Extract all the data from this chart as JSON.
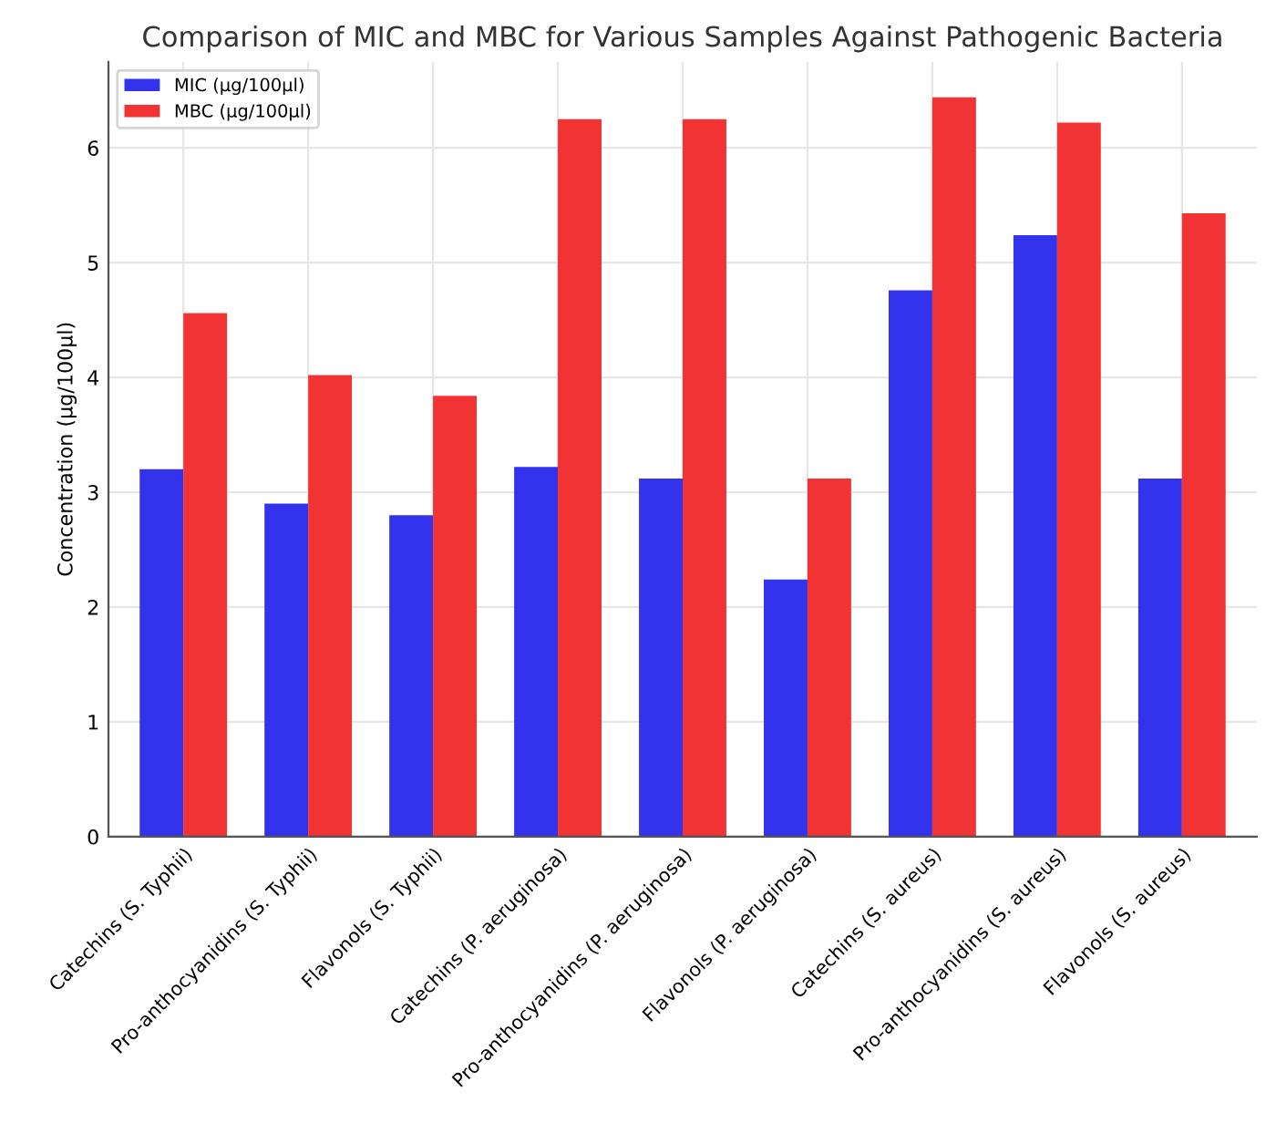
{
  "chart_data": {
    "type": "bar",
    "title": "Comparison of MIC and MBC for Various Samples Against Pathogenic Bacteria",
    "ylabel": "Concentration (µg/100µl)",
    "categories": [
      "Catechins (S. Typhii)",
      "Pro-anthocyanidins (S. Typhii)",
      "Flavonols (S. Typhii)",
      "Catechins (P. aeruginosa)",
      "Pro-anthocyanidins (P. aeruginosa)",
      "Flavonols (P. aeruginosa)",
      "Catechins (S. aureus)",
      "Pro-anthocyanidins (S. aureus)",
      "Flavonols (S. aureus)"
    ],
    "series": [
      {
        "name": "MIC (µg/100µl)",
        "color": "#3333ee",
        "values": [
          3.2,
          2.9,
          2.8,
          3.22,
          3.12,
          2.24,
          4.76,
          5.24,
          3.12
        ]
      },
      {
        "name": "MBC (µg/100µl)",
        "color": "#f23333",
        "values": [
          4.56,
          4.02,
          3.84,
          6.25,
          6.25,
          3.12,
          6.44,
          6.22,
          5.43
        ]
      }
    ],
    "ylim": [
      0,
      6.75
    ],
    "yticks": [
      0,
      1,
      2,
      3,
      4,
      5,
      6
    ],
    "grid": true,
    "legend": "top left"
  }
}
